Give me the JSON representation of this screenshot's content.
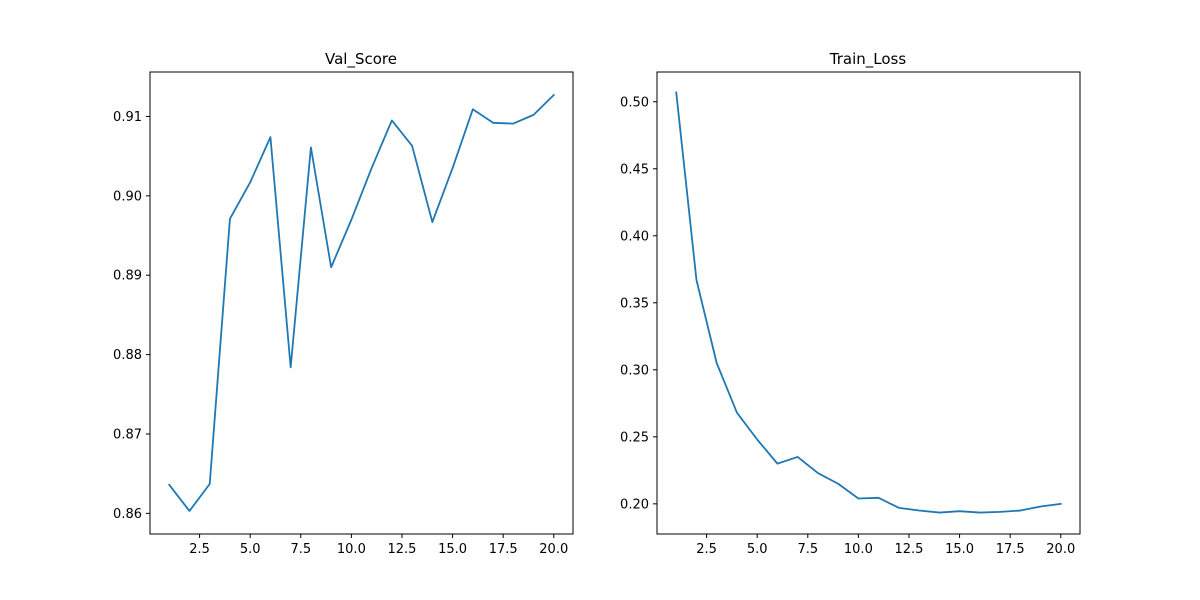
{
  "chart_data": [
    {
      "type": "line",
      "title": "Val_Score",
      "xlabel": "",
      "ylabel": "",
      "grid": false,
      "line_color": "#1f77b4",
      "xlim": [
        0.05,
        20.95
      ],
      "ylim": [
        0.8574,
        0.9156
      ],
      "xticks": [
        2.5,
        5.0,
        7.5,
        10.0,
        12.5,
        15.0,
        17.5,
        20.0
      ],
      "xtick_labels": [
        "2.5",
        "5.0",
        "7.5",
        "10.0",
        "12.5",
        "15.0",
        "17.5",
        "20.0"
      ],
      "yticks": [
        0.86,
        0.87,
        0.88,
        0.89,
        0.9,
        0.91
      ],
      "ytick_labels": [
        "0.86",
        "0.87",
        "0.88",
        "0.89",
        "0.90",
        "0.91"
      ],
      "series": [
        {
          "x": [
            1,
            2,
            3,
            4,
            5,
            6,
            7,
            8,
            9,
            10,
            11,
            12,
            13,
            14,
            15,
            16,
            17,
            18,
            19,
            20
          ],
          "values": [
            0.8636,
            0.8603,
            0.8637,
            0.8971,
            0.9017,
            0.9074,
            0.8784,
            0.9061,
            0.891,
            0.897,
            0.9035,
            0.9095,
            0.9063,
            0.8967,
            0.9035,
            0.9109,
            0.9092,
            0.9091,
            0.9102,
            0.9127
          ]
        }
      ]
    },
    {
      "type": "line",
      "title": "Train_Loss",
      "xlabel": "",
      "ylabel": "",
      "grid": false,
      "line_color": "#1f77b4",
      "xlim": [
        0.05,
        20.95
      ],
      "ylim": [
        0.1775,
        0.5222
      ],
      "xticks": [
        2.5,
        5.0,
        7.5,
        10.0,
        12.5,
        15.0,
        17.5,
        20.0
      ],
      "xtick_labels": [
        "2.5",
        "5.0",
        "7.5",
        "10.0",
        "12.5",
        "15.0",
        "17.5",
        "20.0"
      ],
      "yticks": [
        0.2,
        0.25,
        0.3,
        0.35,
        0.4,
        0.45,
        0.5
      ],
      "ytick_labels": [
        "0.20",
        "0.25",
        "0.30",
        "0.35",
        "0.40",
        "0.45",
        "0.50"
      ],
      "series": [
        {
          "x": [
            1,
            2,
            3,
            4,
            5,
            6,
            7,
            8,
            9,
            10,
            11,
            12,
            13,
            14,
            15,
            16,
            17,
            18,
            19,
            20
          ],
          "values": [
            0.507,
            0.367,
            0.305,
            0.268,
            0.248,
            0.23,
            0.235,
            0.223,
            0.215,
            0.204,
            0.2045,
            0.197,
            0.195,
            0.1935,
            0.1945,
            0.1935,
            0.194,
            0.195,
            0.198,
            0.2
          ]
        }
      ]
    }
  ]
}
